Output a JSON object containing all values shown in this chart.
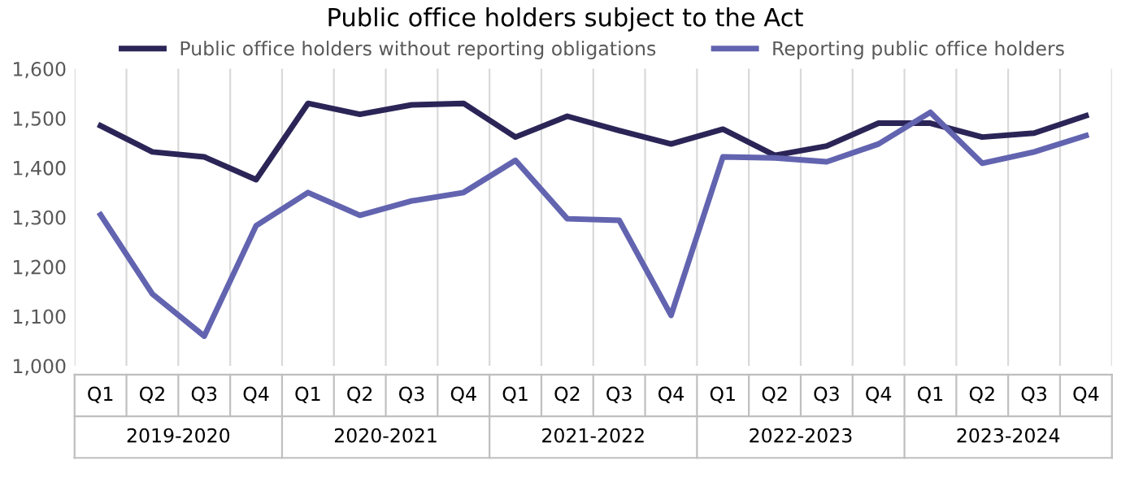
{
  "chart_data": {
    "type": "line",
    "title": "Public office holders subject to the Act",
    "categories": [
      "Q1",
      "Q2",
      "Q3",
      "Q4",
      "Q1",
      "Q2",
      "Q3",
      "Q4",
      "Q1",
      "Q2",
      "Q3",
      "Q4",
      "Q1",
      "Q2",
      "Q3",
      "Q4",
      "Q1",
      "Q2",
      "Q3",
      "Q4"
    ],
    "series": [
      {
        "name": "Public office holders without reporting obligations",
        "color": "#2b2557",
        "values": [
          1485,
          1432,
          1422,
          1376,
          1530,
          1508,
          1527,
          1530,
          1462,
          1504,
          1475,
          1448,
          1478,
          1425,
          1444,
          1490,
          1490,
          1462,
          1470,
          1505
        ]
      },
      {
        "name": "Reporting public office holders",
        "color": "#6264b0",
        "values": [
          1305,
          1145,
          1060,
          1283,
          1350,
          1304,
          1333,
          1350,
          1415,
          1297,
          1294,
          1102,
          1422,
          1420,
          1412,
          1448,
          1512,
          1409,
          1432,
          1465
        ]
      }
    ],
    "annotations": [
      "2019-2020",
      "2020-2021",
      "2021-2022",
      "2022-2023",
      "2023-2024"
    ],
    "ylim": [
      1000,
      1600
    ],
    "yticks": [
      {
        "value": 1000,
        "label": "1,000"
      },
      {
        "value": 1100,
        "label": "1,100"
      },
      {
        "value": 1200,
        "label": "1,200"
      },
      {
        "value": 1300,
        "label": "1,300"
      },
      {
        "value": 1400,
        "label": "1,400"
      },
      {
        "value": 1500,
        "label": "1,500"
      },
      {
        "value": 1600,
        "label": "1,600"
      }
    ],
    "grid": "x",
    "legend": "top",
    "marker": "none",
    "line_style": "solid"
  }
}
